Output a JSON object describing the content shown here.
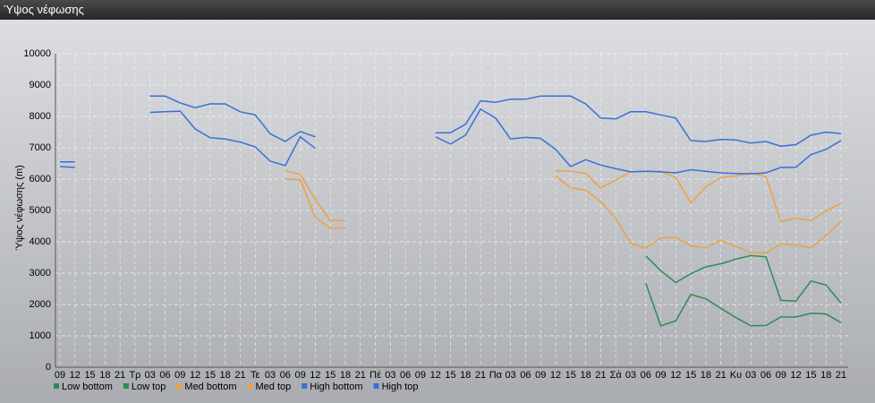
{
  "window_title": "Ύψος νέφωσης",
  "chart_data": {
    "type": "line",
    "ylabel": "Ύψος νέφωσης (m)",
    "categories": [
      "09",
      "12",
      "15",
      "18",
      "21",
      "Τρ",
      "03",
      "06",
      "09",
      "12",
      "15",
      "18",
      "21",
      "Τε",
      "03",
      "06",
      "09",
      "12",
      "15",
      "18",
      "21",
      "Πέ",
      "03",
      "06",
      "09",
      "12",
      "15",
      "18",
      "21",
      "Πα",
      "03",
      "06",
      "09",
      "12",
      "15",
      "18",
      "21",
      "Σά",
      "03",
      "06",
      "09",
      "12",
      "15",
      "18",
      "21",
      "Κυ",
      "03",
      "06",
      "09",
      "12",
      "15",
      "18",
      "21"
    ],
    "ylim": [
      0,
      10000
    ],
    "yticks": [
      0,
      1000,
      2000,
      3000,
      4000,
      5000,
      6000,
      7000,
      8000,
      9000,
      10000
    ],
    "grid": true,
    "legend": "bottom",
    "series": [
      {
        "name": "Low bottom",
        "color": "#2e8b57",
        "values": [
          null,
          null,
          null,
          null,
          null,
          null,
          null,
          null,
          null,
          null,
          null,
          null,
          null,
          null,
          null,
          null,
          null,
          null,
          null,
          null,
          null,
          null,
          null,
          null,
          null,
          null,
          null,
          null,
          null,
          null,
          null,
          null,
          null,
          null,
          null,
          null,
          null,
          null,
          null,
          2680,
          1320,
          1480,
          2320,
          2180,
          1880,
          1580,
          1320,
          1330,
          1600,
          1600,
          1720,
          1700,
          1420
        ]
      },
      {
        "name": "Low top",
        "color": "#2e8b57",
        "values": [
          null,
          null,
          null,
          null,
          null,
          null,
          null,
          null,
          null,
          null,
          null,
          null,
          null,
          null,
          null,
          null,
          null,
          null,
          null,
          null,
          null,
          null,
          null,
          null,
          null,
          null,
          null,
          null,
          null,
          null,
          null,
          null,
          null,
          null,
          null,
          null,
          null,
          null,
          null,
          3550,
          3080,
          2700,
          2980,
          3200,
          3300,
          3450,
          3560,
          3520,
          2130,
          2110,
          2750,
          2620,
          2050
        ]
      },
      {
        "name": "Med bottom",
        "color": "#f0a040",
        "values": [
          null,
          null,
          null,
          null,
          null,
          null,
          null,
          null,
          null,
          null,
          null,
          null,
          null,
          null,
          null,
          6000,
          5980,
          4780,
          4430,
          4450,
          null,
          null,
          null,
          null,
          null,
          null,
          null,
          null,
          null,
          null,
          null,
          null,
          null,
          6100,
          5720,
          5650,
          5280,
          4750,
          3950,
          3800,
          4120,
          4150,
          3870,
          3800,
          4050,
          3850,
          3650,
          3650,
          3930,
          3900,
          3800,
          4200,
          4650
        ]
      },
      {
        "name": "Med top",
        "color": "#f0a040",
        "values": [
          null,
          null,
          null,
          null,
          null,
          null,
          null,
          null,
          null,
          null,
          null,
          null,
          null,
          null,
          null,
          6270,
          6150,
          5350,
          4680,
          4680,
          null,
          null,
          null,
          null,
          null,
          null,
          null,
          null,
          null,
          null,
          null,
          null,
          null,
          6270,
          6250,
          6180,
          5720,
          5970,
          6230,
          6250,
          6250,
          6050,
          5250,
          5750,
          6050,
          6100,
          6200,
          6080,
          4650,
          4750,
          4680,
          4980,
          5230
        ]
      },
      {
        "name": "High bottom",
        "color": "#3a6fd8",
        "values": [
          6400,
          6370,
          null,
          null,
          null,
          null,
          8130,
          8150,
          8170,
          7600,
          7320,
          7280,
          7180,
          7030,
          6570,
          6430,
          7350,
          6980,
          null,
          null,
          null,
          null,
          null,
          null,
          null,
          7350,
          7120,
          7400,
          8230,
          7950,
          7280,
          7330,
          7300,
          6950,
          6400,
          6620,
          6450,
          6330,
          6230,
          6250,
          6230,
          6200,
          6300,
          6250,
          6200,
          6180,
          6170,
          6200,
          6370,
          6380,
          6780,
          6950,
          7230
        ]
      },
      {
        "name": "High top",
        "color": "#3a6fd8",
        "values": [
          6550,
          6550,
          null,
          null,
          null,
          null,
          8650,
          8650,
          8430,
          8280,
          8400,
          8400,
          8150,
          8050,
          7450,
          7200,
          7520,
          7350,
          null,
          null,
          null,
          null,
          null,
          null,
          null,
          7480,
          7480,
          7750,
          8500,
          8450,
          8550,
          8550,
          8650,
          8650,
          8650,
          8400,
          7950,
          7920,
          8150,
          8150,
          8050,
          7950,
          7230,
          7200,
          7270,
          7250,
          7150,
          7200,
          7050,
          7100,
          7400,
          7500,
          7450
        ]
      }
    ]
  }
}
